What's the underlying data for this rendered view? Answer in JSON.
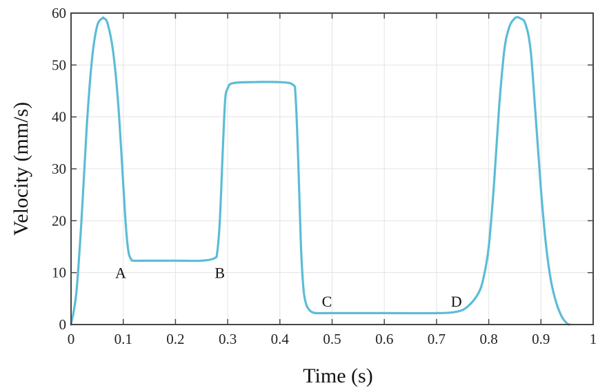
{
  "chart_data": {
    "type": "line",
    "title": "",
    "xlabel": "Time (s)",
    "ylabel": "Velocity (mm/s)",
    "xlim": [
      0,
      1
    ],
    "ylim": [
      0,
      60
    ],
    "xticks": [
      0,
      0.1,
      0.2,
      0.3,
      0.4,
      0.5,
      0.6,
      0.7,
      0.8,
      0.9,
      1
    ],
    "xtick_labels": [
      "0",
      "0.1",
      "0.2",
      "0.3",
      "0.4",
      "0.5",
      "0.6",
      "0.7",
      "0.8",
      "0.9",
      "1"
    ],
    "yticks": [
      0,
      10,
      20,
      30,
      40,
      50,
      60
    ],
    "ytick_labels": [
      "0",
      "10",
      "20",
      "30",
      "40",
      "50",
      "60"
    ],
    "grid": true,
    "legend": null,
    "line_color": "#5bbcd6",
    "series": [
      {
        "name": "velocity",
        "x": [
          0,
          0.01,
          0.02,
          0.03,
          0.04,
          0.05,
          0.06,
          0.063,
          0.07,
          0.08,
          0.09,
          0.1,
          0.105,
          0.11,
          0.115,
          0.12,
          0.15,
          0.2,
          0.25,
          0.275,
          0.28,
          0.285,
          0.29,
          0.295,
          0.3,
          0.31,
          0.35,
          0.4,
          0.425,
          0.43,
          0.435,
          0.44,
          0.445,
          0.45,
          0.455,
          0.46,
          0.47,
          0.5,
          0.6,
          0.7,
          0.74,
          0.76,
          0.78,
          0.79,
          0.8,
          0.81,
          0.82,
          0.83,
          0.84,
          0.85,
          0.855,
          0.86,
          0.87,
          0.88,
          0.89,
          0.9,
          0.91,
          0.92,
          0.93,
          0.94,
          0.95,
          0.955
        ],
        "y": [
          0,
          6,
          20,
          38,
          51,
          57.5,
          59,
          59,
          58,
          53,
          43,
          27,
          19,
          14,
          12.6,
          12.3,
          12.3,
          12.3,
          12.3,
          12.8,
          14,
          20,
          32,
          43,
          45.5,
          46.5,
          46.7,
          46.7,
          46.2,
          44,
          32,
          16,
          7,
          4,
          3,
          2.5,
          2.2,
          2.2,
          2.2,
          2.2,
          2.5,
          3.5,
          6,
          9,
          15,
          27,
          42,
          53,
          57.5,
          59,
          59.2,
          59,
          58,
          53,
          40,
          26,
          15,
          8,
          4,
          1.5,
          0.2,
          0
        ]
      }
    ],
    "annotations": [
      {
        "text": "A",
        "x": 0.095,
        "y": 10
      },
      {
        "text": "B",
        "x": 0.285,
        "y": 10
      },
      {
        "text": "C",
        "x": 0.49,
        "y": 4.5
      },
      {
        "text": "D",
        "x": 0.738,
        "y": 4.5
      }
    ]
  }
}
